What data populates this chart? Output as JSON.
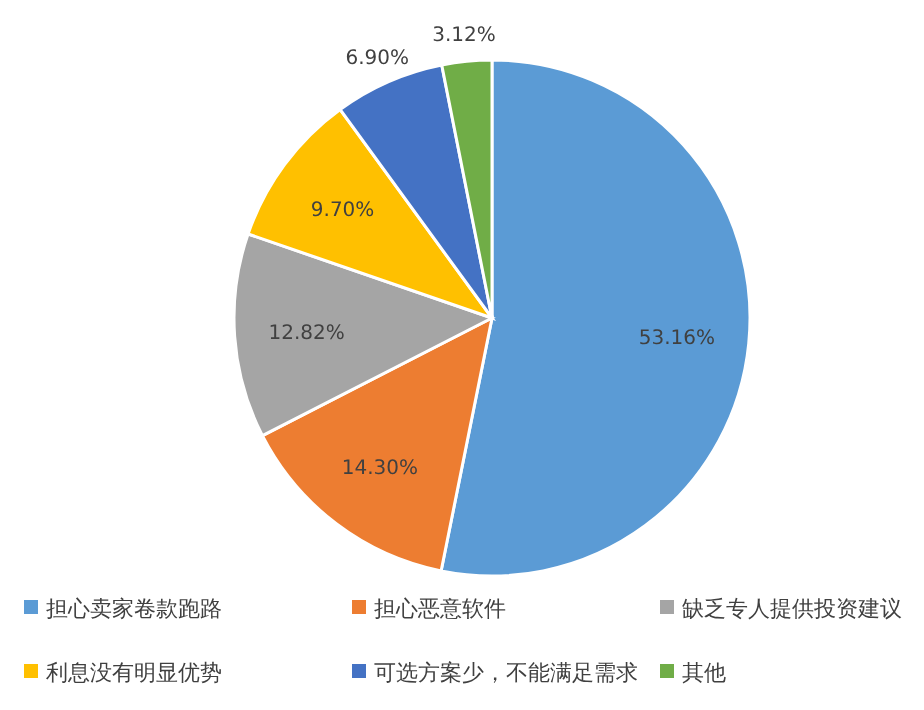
{
  "chart_data": {
    "type": "pie",
    "categories": [
      "担心卖家卷款跑路",
      "担心恶意软件",
      "缺乏专人提供投资建议",
      "利息没有明显优势",
      "可选方案少，不能满足需求",
      "其他"
    ],
    "values": [
      53.16,
      14.3,
      12.82,
      9.7,
      6.9,
      3.12
    ],
    "colors": [
      "#5b9bd5",
      "#ed7d31",
      "#a5a5a5",
      "#ffc000",
      "#4472c4",
      "#70ad47"
    ],
    "value_labels": [
      "53.16%",
      "14.30%",
      "12.82%",
      "9.70%",
      "6.90%",
      "3.12%"
    ],
    "legend": "bottom"
  }
}
